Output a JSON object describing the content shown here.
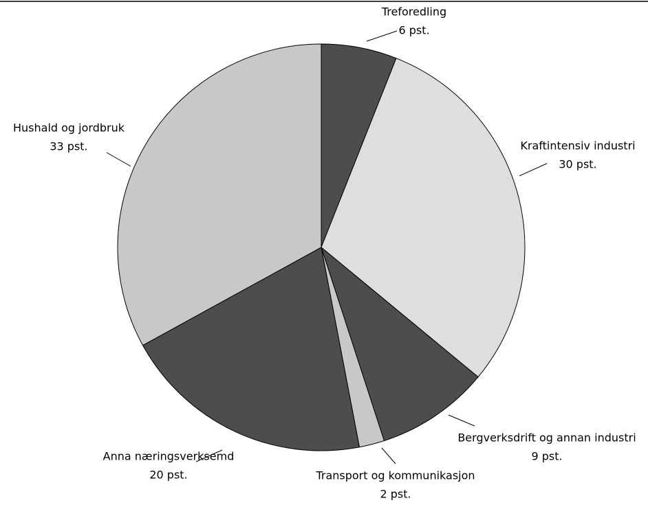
{
  "chart_data": {
    "type": "pie",
    "categories": [
      "Treforedling",
      "Kraftintensiv industri",
      "Bergverksdrift og annan industri",
      "Transport og kommunikasjon",
      "Anna næringsverksemd",
      "Hushald og jordbruk"
    ],
    "values": [
      6,
      30,
      9,
      2,
      20,
      33
    ],
    "value_labels": [
      "6 pst.",
      "30 pst.",
      "9 pst.",
      "2 pst.",
      "20 pst.",
      "33 pst."
    ],
    "colors": [
      "#4d4d4d",
      "#dedede",
      "#4d4d4d",
      "#c8c8c8",
      "#4d4d4d",
      "#c8c8c8"
    ]
  }
}
